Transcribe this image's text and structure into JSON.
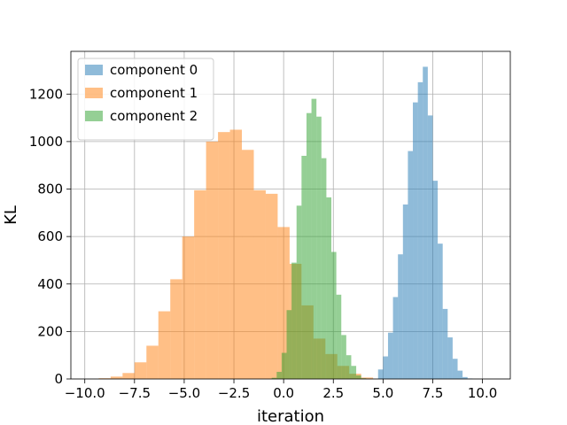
{
  "chart_data": {
    "type": "histogram",
    "xlabel": "iteration",
    "ylabel": "KL",
    "xlim": [
      -10.7,
      11.4
    ],
    "ylim": [
      0,
      1380
    ],
    "xticks": [
      -10.0,
      -7.5,
      -5.0,
      -2.5,
      0.0,
      2.5,
      5.0,
      7.5,
      10.0
    ],
    "xtick_labels": [
      "−10.0",
      "−7.5",
      "−5.0",
      "−2.5",
      "0.0",
      "2.5",
      "5.0",
      "7.5",
      "10.0"
    ],
    "yticks": [
      0,
      200,
      400,
      600,
      800,
      1000,
      1200
    ],
    "ytick_labels": [
      "0",
      "200",
      "400",
      "600",
      "800",
      "1000",
      "1200"
    ],
    "grid": true,
    "legend_position": "top-left",
    "series": [
      {
        "name": "component 0",
        "color": "#1f77b4",
        "alpha": 0.5,
        "bin_edges": [
          4.75,
          5.0,
          5.25,
          5.5,
          5.75,
          6.0,
          6.25,
          6.5,
          6.75,
          7.0,
          7.25,
          7.5,
          7.75,
          8.0,
          8.25,
          8.5,
          8.75,
          9.0,
          9.25,
          9.5
        ],
        "counts": [
          40,
          95,
          195,
          345,
          525,
          735,
          960,
          1165,
          1250,
          1315,
          1110,
          835,
          570,
          295,
          175,
          85,
          35,
          8,
          2
        ]
      },
      {
        "name": "component 1",
        "color": "#ff7f0e",
        "alpha": 0.5,
        "bin_edges": [
          -9.3,
          -8.7,
          -8.1,
          -7.5,
          -6.9,
          -6.3,
          -5.7,
          -5.1,
          -4.5,
          -3.9,
          -3.3,
          -2.7,
          -2.1,
          -1.5,
          -0.9,
          -0.3,
          0.3,
          0.9,
          1.5,
          2.1,
          2.7,
          3.3,
          3.9,
          4.5
        ],
        "counts": [
          3,
          10,
          25,
          70,
          140,
          285,
          420,
          600,
          795,
          1000,
          1040,
          1050,
          965,
          795,
          780,
          640,
          485,
          310,
          170,
          105,
          55,
          22,
          6
        ]
      },
      {
        "name": "component 2",
        "color": "#2ca02c",
        "alpha": 0.5,
        "bin_edges": [
          -0.6,
          -0.35,
          -0.1,
          0.15,
          0.4,
          0.65,
          0.9,
          1.15,
          1.4,
          1.65,
          1.9,
          2.15,
          2.4,
          2.65,
          2.9,
          3.15,
          3.4,
          3.65,
          3.9,
          4.15
        ],
        "counts": [
          5,
          30,
          110,
          290,
          490,
          730,
          940,
          1120,
          1180,
          1105,
          930,
          765,
          535,
          355,
          185,
          100,
          55,
          15,
          3
        ]
      }
    ]
  }
}
